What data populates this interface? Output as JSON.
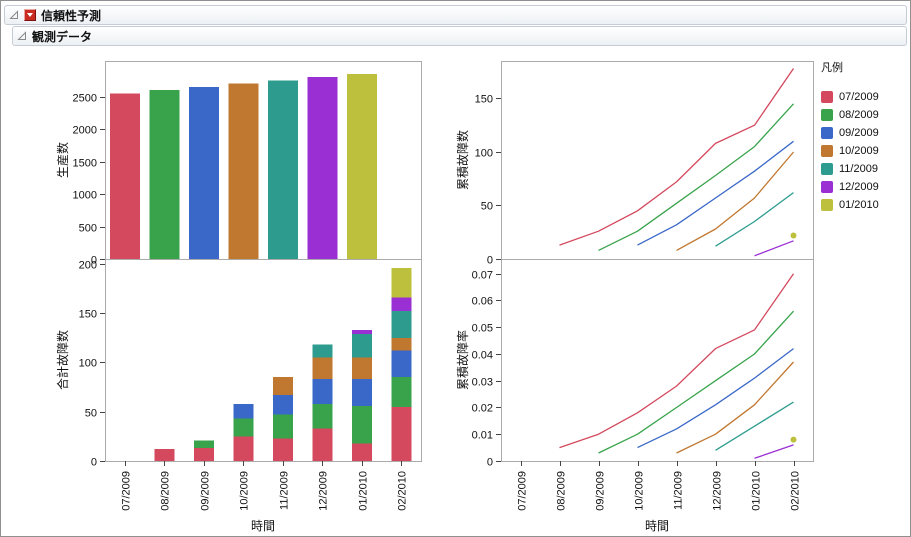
{
  "headers": {
    "report_title": "信頼性予測",
    "section_title": "観測データ"
  },
  "legend": {
    "title": "凡例",
    "items": [
      {
        "label": "07/2009",
        "color": "#d4495e"
      },
      {
        "label": "08/2009",
        "color": "#38a34b"
      },
      {
        "label": "09/2009",
        "color": "#3a68c8"
      },
      {
        "label": "10/2009",
        "color": "#c0772f"
      },
      {
        "label": "11/2009",
        "color": "#2d9c8e"
      },
      {
        "label": "12/2009",
        "color": "#9a2fd4"
      },
      {
        "label": "01/2010",
        "color": "#bdc03c"
      }
    ]
  },
  "months": [
    "07/2009",
    "08/2009",
    "09/2009",
    "10/2009",
    "11/2009",
    "12/2009",
    "01/2010",
    "02/2010"
  ],
  "chart_data": [
    {
      "type": "bar",
      "ylabel": "生産数",
      "xlabel": "時間",
      "categories": [
        "07/2009",
        "08/2009",
        "09/2009",
        "10/2009",
        "11/2009",
        "12/2009",
        "01/2010"
      ],
      "values": [
        2550,
        2600,
        2650,
        2700,
        2750,
        2800,
        2850
      ],
      "colors": [
        "#d4495e",
        "#38a34b",
        "#3a68c8",
        "#c0772f",
        "#2d9c8e",
        "#9a2fd4",
        "#bdc03c"
      ],
      "ylim": [
        0,
        3050
      ],
      "yticks": [
        0,
        500,
        1000,
        1500,
        2000,
        2500
      ],
      "grid": false
    },
    {
      "type": "line",
      "ylabel": "累積故障数",
      "xlabel": "時間",
      "x": [
        "07/2009",
        "08/2009",
        "09/2009",
        "10/2009",
        "11/2009",
        "12/2009",
        "01/2010",
        "02/2010"
      ],
      "ylim": [
        0,
        185
      ],
      "yticks": [
        0,
        50,
        100,
        150
      ],
      "grid": false,
      "legend_position": "right",
      "series": [
        {
          "name": "07/2009",
          "color": "#d4495e",
          "values": [
            null,
            13,
            26,
            45,
            72,
            108,
            125,
            178
          ]
        },
        {
          "name": "08/2009",
          "color": "#38a34b",
          "values": [
            null,
            null,
            8,
            26,
            52,
            78,
            105,
            145
          ]
        },
        {
          "name": "09/2009",
          "color": "#3a68c8",
          "values": [
            null,
            null,
            null,
            13,
            32,
            57,
            82,
            110
          ]
        },
        {
          "name": "10/2009",
          "color": "#c0772f",
          "values": [
            null,
            null,
            null,
            null,
            8,
            28,
            57,
            100
          ]
        },
        {
          "name": "11/2009",
          "color": "#2d9c8e",
          "values": [
            null,
            null,
            null,
            null,
            null,
            12,
            35,
            62
          ]
        },
        {
          "name": "12/2009",
          "color": "#9a2fd4",
          "values": [
            null,
            null,
            null,
            null,
            null,
            null,
            3,
            17
          ]
        },
        {
          "name": "01/2010",
          "color": "#bdc03c",
          "values": [
            null,
            null,
            null,
            null,
            null,
            null,
            null,
            22
          ],
          "marker": "dot"
        }
      ]
    },
    {
      "type": "bar",
      "stacked": true,
      "ylabel": "合計故障数",
      "xlabel": "時間",
      "categories": [
        "07/2009",
        "08/2009",
        "09/2009",
        "10/2009",
        "11/2009",
        "12/2009",
        "01/2010",
        "02/2010"
      ],
      "ylim": [
        0,
        205
      ],
      "yticks": [
        0,
        50,
        100,
        150,
        200
      ],
      "grid": false,
      "series": [
        {
          "name": "07/2009",
          "color": "#d4495e",
          "values": [
            0,
            12,
            13,
            25,
            23,
            33,
            18,
            55
          ]
        },
        {
          "name": "08/2009",
          "color": "#38a34b",
          "values": [
            0,
            0,
            8,
            18,
            24,
            25,
            38,
            30
          ]
        },
        {
          "name": "09/2009",
          "color": "#3a68c8",
          "values": [
            0,
            0,
            0,
            15,
            20,
            25,
            27,
            27
          ]
        },
        {
          "name": "10/2009",
          "color": "#c0772f",
          "values": [
            0,
            0,
            0,
            0,
            18,
            22,
            22,
            13
          ]
        },
        {
          "name": "11/2009",
          "color": "#2d9c8e",
          "values": [
            0,
            0,
            0,
            0,
            0,
            13,
            24,
            27
          ]
        },
        {
          "name": "12/2009",
          "color": "#9a2fd4",
          "values": [
            0,
            0,
            0,
            0,
            0,
            0,
            4,
            14
          ]
        },
        {
          "name": "01/2010",
          "color": "#bdc03c",
          "values": [
            0,
            0,
            0,
            0,
            0,
            0,
            0,
            30
          ]
        }
      ]
    },
    {
      "type": "line",
      "ylabel": "累積故障率",
      "xlabel": "時間",
      "x": [
        "07/2009",
        "08/2009",
        "09/2009",
        "10/2009",
        "11/2009",
        "12/2009",
        "01/2010",
        "02/2010"
      ],
      "ylim": [
        0,
        0.0755
      ],
      "yticks": [
        0,
        0.01,
        0.02,
        0.03,
        0.04,
        0.05,
        0.06,
        0.07
      ],
      "grid": false,
      "series": [
        {
          "name": "07/2009",
          "color": "#d4495e",
          "values": [
            null,
            0.005,
            0.01,
            0.018,
            0.028,
            0.042,
            0.049,
            0.07
          ]
        },
        {
          "name": "08/2009",
          "color": "#38a34b",
          "values": [
            null,
            null,
            0.003,
            0.01,
            0.02,
            0.03,
            0.04,
            0.056
          ]
        },
        {
          "name": "09/2009",
          "color": "#3a68c8",
          "values": [
            null,
            null,
            null,
            0.005,
            0.012,
            0.021,
            0.031,
            0.042
          ]
        },
        {
          "name": "10/2009",
          "color": "#c0772f",
          "values": [
            null,
            null,
            null,
            null,
            0.003,
            0.01,
            0.021,
            0.037
          ]
        },
        {
          "name": "11/2009",
          "color": "#2d9c8e",
          "values": [
            null,
            null,
            null,
            null,
            null,
            0.004,
            0.013,
            0.022
          ]
        },
        {
          "name": "12/2009",
          "color": "#9a2fd4",
          "values": [
            null,
            null,
            null,
            null,
            null,
            null,
            0.001,
            0.006
          ]
        },
        {
          "name": "01/2010",
          "color": "#bdc03c",
          "values": [
            null,
            null,
            null,
            null,
            null,
            null,
            null,
            0.008
          ],
          "marker": "dot"
        }
      ]
    }
  ]
}
